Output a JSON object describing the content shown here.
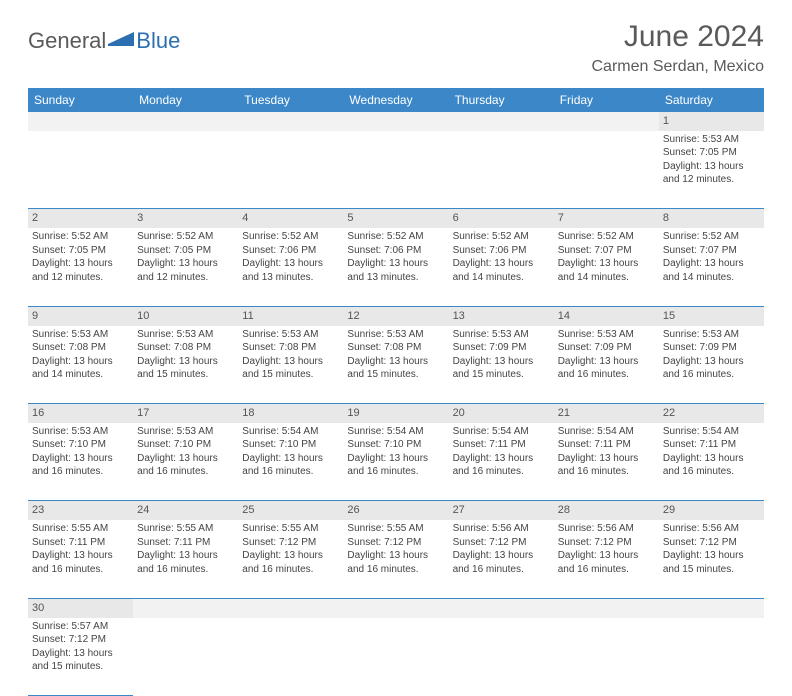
{
  "logo": {
    "part1": "General",
    "part2": "Blue"
  },
  "title": "June 2024",
  "location": "Carmen Serdan, Mexico",
  "colors": {
    "header_bg": "#3b87c8",
    "header_text": "#ffffff",
    "daynum_bg": "#e8e8e8",
    "border": "#3b87c8",
    "brand_blue": "#2c6fb0",
    "text_gray": "#5a5a5a"
  },
  "weekdays": [
    "Sunday",
    "Monday",
    "Tuesday",
    "Wednesday",
    "Thursday",
    "Friday",
    "Saturday"
  ],
  "weeks": [
    [
      null,
      null,
      null,
      null,
      null,
      null,
      {
        "n": "1",
        "sr": "5:53 AM",
        "ss": "7:05 PM",
        "dl": "13 hours and 12 minutes."
      }
    ],
    [
      {
        "n": "2",
        "sr": "5:52 AM",
        "ss": "7:05 PM",
        "dl": "13 hours and 12 minutes."
      },
      {
        "n": "3",
        "sr": "5:52 AM",
        "ss": "7:05 PM",
        "dl": "13 hours and 12 minutes."
      },
      {
        "n": "4",
        "sr": "5:52 AM",
        "ss": "7:06 PM",
        "dl": "13 hours and 13 minutes."
      },
      {
        "n": "5",
        "sr": "5:52 AM",
        "ss": "7:06 PM",
        "dl": "13 hours and 13 minutes."
      },
      {
        "n": "6",
        "sr": "5:52 AM",
        "ss": "7:06 PM",
        "dl": "13 hours and 14 minutes."
      },
      {
        "n": "7",
        "sr": "5:52 AM",
        "ss": "7:07 PM",
        "dl": "13 hours and 14 minutes."
      },
      {
        "n": "8",
        "sr": "5:52 AM",
        "ss": "7:07 PM",
        "dl": "13 hours and 14 minutes."
      }
    ],
    [
      {
        "n": "9",
        "sr": "5:53 AM",
        "ss": "7:08 PM",
        "dl": "13 hours and 14 minutes."
      },
      {
        "n": "10",
        "sr": "5:53 AM",
        "ss": "7:08 PM",
        "dl": "13 hours and 15 minutes."
      },
      {
        "n": "11",
        "sr": "5:53 AM",
        "ss": "7:08 PM",
        "dl": "13 hours and 15 minutes."
      },
      {
        "n": "12",
        "sr": "5:53 AM",
        "ss": "7:08 PM",
        "dl": "13 hours and 15 minutes."
      },
      {
        "n": "13",
        "sr": "5:53 AM",
        "ss": "7:09 PM",
        "dl": "13 hours and 15 minutes."
      },
      {
        "n": "14",
        "sr": "5:53 AM",
        "ss": "7:09 PM",
        "dl": "13 hours and 16 minutes."
      },
      {
        "n": "15",
        "sr": "5:53 AM",
        "ss": "7:09 PM",
        "dl": "13 hours and 16 minutes."
      }
    ],
    [
      {
        "n": "16",
        "sr": "5:53 AM",
        "ss": "7:10 PM",
        "dl": "13 hours and 16 minutes."
      },
      {
        "n": "17",
        "sr": "5:53 AM",
        "ss": "7:10 PM",
        "dl": "13 hours and 16 minutes."
      },
      {
        "n": "18",
        "sr": "5:54 AM",
        "ss": "7:10 PM",
        "dl": "13 hours and 16 minutes."
      },
      {
        "n": "19",
        "sr": "5:54 AM",
        "ss": "7:10 PM",
        "dl": "13 hours and 16 minutes."
      },
      {
        "n": "20",
        "sr": "5:54 AM",
        "ss": "7:11 PM",
        "dl": "13 hours and 16 minutes."
      },
      {
        "n": "21",
        "sr": "5:54 AM",
        "ss": "7:11 PM",
        "dl": "13 hours and 16 minutes."
      },
      {
        "n": "22",
        "sr": "5:54 AM",
        "ss": "7:11 PM",
        "dl": "13 hours and 16 minutes."
      }
    ],
    [
      {
        "n": "23",
        "sr": "5:55 AM",
        "ss": "7:11 PM",
        "dl": "13 hours and 16 minutes."
      },
      {
        "n": "24",
        "sr": "5:55 AM",
        "ss": "7:11 PM",
        "dl": "13 hours and 16 minutes."
      },
      {
        "n": "25",
        "sr": "5:55 AM",
        "ss": "7:12 PM",
        "dl": "13 hours and 16 minutes."
      },
      {
        "n": "26",
        "sr": "5:55 AM",
        "ss": "7:12 PM",
        "dl": "13 hours and 16 minutes."
      },
      {
        "n": "27",
        "sr": "5:56 AM",
        "ss": "7:12 PM",
        "dl": "13 hours and 16 minutes."
      },
      {
        "n": "28",
        "sr": "5:56 AM",
        "ss": "7:12 PM",
        "dl": "13 hours and 16 minutes."
      },
      {
        "n": "29",
        "sr": "5:56 AM",
        "ss": "7:12 PM",
        "dl": "13 hours and 15 minutes."
      }
    ],
    [
      {
        "n": "30",
        "sr": "5:57 AM",
        "ss": "7:12 PM",
        "dl": "13 hours and 15 minutes."
      },
      null,
      null,
      null,
      null,
      null,
      null
    ]
  ],
  "labels": {
    "sunrise": "Sunrise: ",
    "sunset": "Sunset: ",
    "daylight": "Daylight: "
  }
}
